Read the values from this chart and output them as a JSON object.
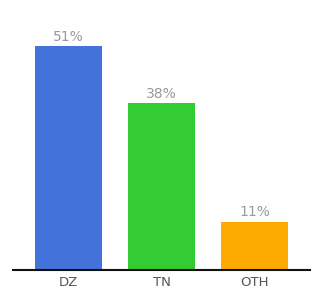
{
  "categories": [
    "DZ",
    "TN",
    "OTH"
  ],
  "values": [
    51,
    38,
    11
  ],
  "bar_colors": [
    "#4472db",
    "#33cc33",
    "#ffaa00"
  ],
  "label_color": "#999999",
  "labels": [
    "51%",
    "38%",
    "11%"
  ],
  "ylim": [
    0,
    58
  ],
  "background_color": "#ffffff",
  "label_fontsize": 10,
  "tick_fontsize": 9.5,
  "bar_width": 0.72
}
